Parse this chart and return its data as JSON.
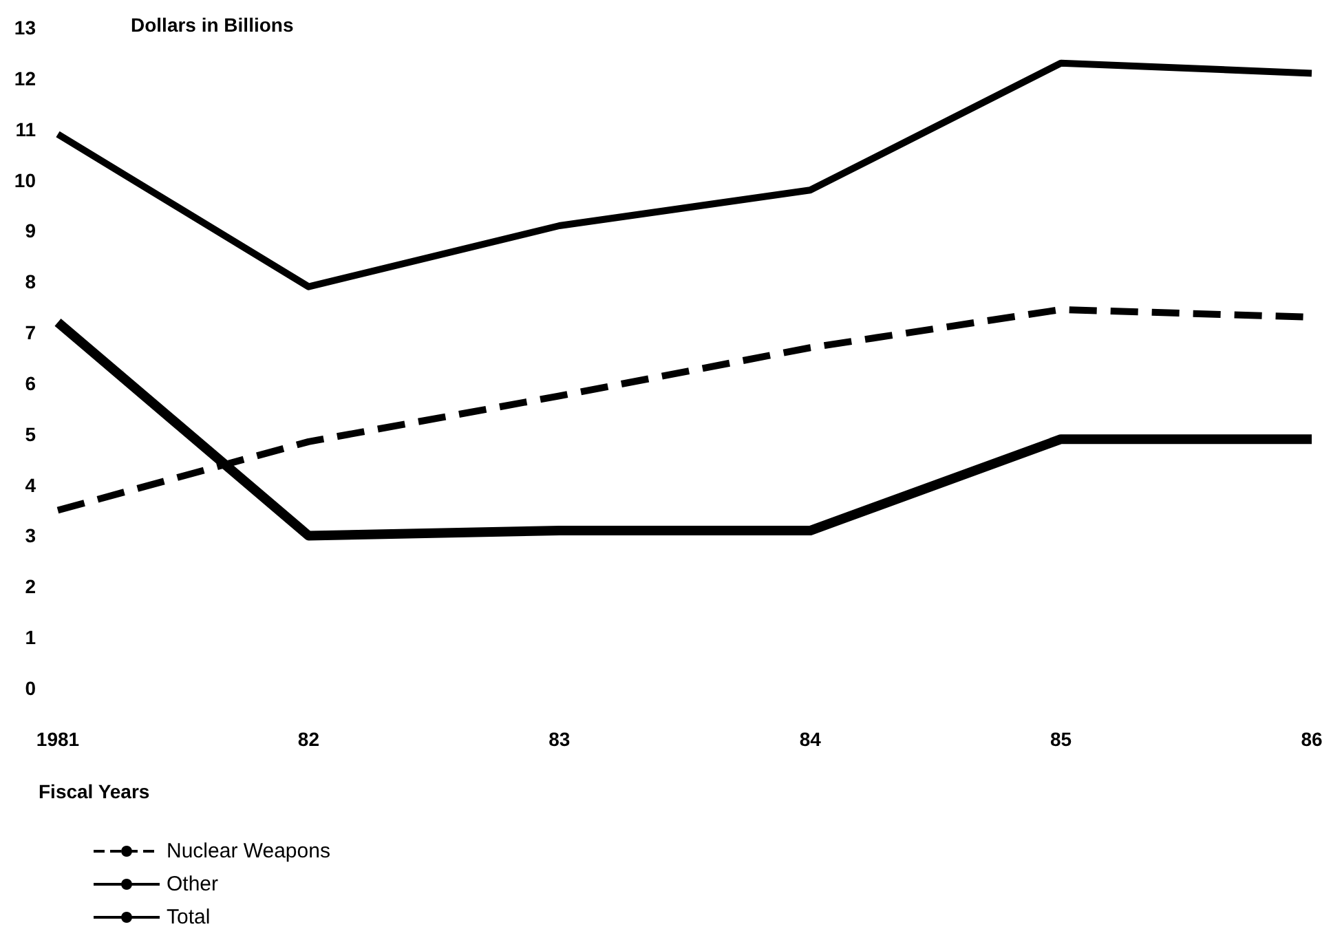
{
  "chart_data": {
    "type": "line",
    "ylabel": "Dollars in Billions",
    "xlabel": "Fiscal Years",
    "categories": [
      "1981",
      "82",
      "83",
      "84",
      "85",
      "86"
    ],
    "series": [
      {
        "name": "Nuclear Weapons",
        "color": "#000000",
        "line_style": "dashed",
        "values": [
          3.5,
          4.85,
          5.75,
          6.7,
          7.45,
          7.3
        ]
      },
      {
        "name": "Other",
        "color": "#000000",
        "line_style": "solid",
        "values": [
          7.2,
          3.0,
          3.1,
          3.1,
          4.9,
          4.9
        ]
      },
      {
        "name": "Total",
        "color": "#000000",
        "line_style": "solid",
        "values": [
          10.9,
          7.9,
          9.1,
          9.8,
          12.3,
          12.1
        ]
      }
    ],
    "ylim": [
      0,
      13
    ],
    "yticks": [
      0,
      1,
      2,
      3,
      4,
      5,
      6,
      7,
      8,
      9,
      10,
      11,
      12,
      13
    ],
    "grid": false,
    "legend": "bottom left",
    "marker": "none"
  }
}
